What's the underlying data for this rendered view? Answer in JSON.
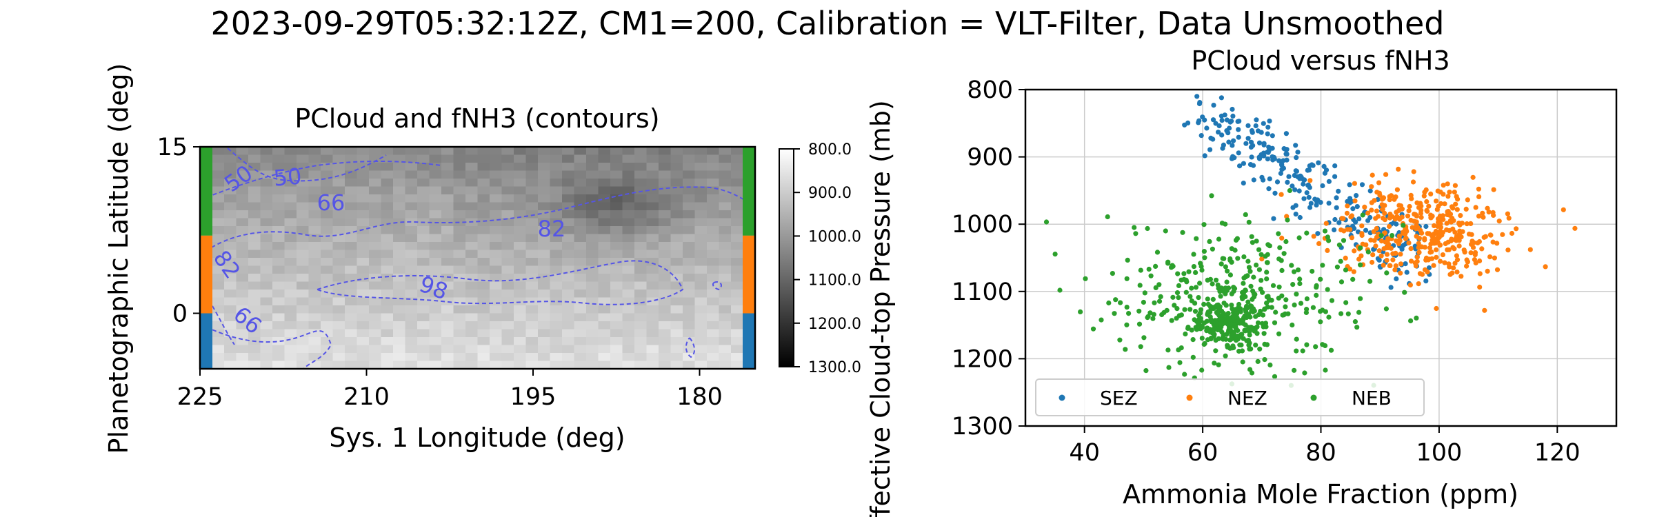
{
  "suptitle": "2023-09-29T05:32:12Z, CM1=200, Calibration = VLT-Filter, Data Unsmoothed",
  "chart_data": [
    {
      "type": "heatmap",
      "title": "PCloud and fNH3 (contours)",
      "xlabel": "Sys. 1 Longitude (deg)",
      "ylabel": "Planetographic Latitude (deg)",
      "x_range": [
        225,
        175
      ],
      "y_range": [
        -5,
        15
      ],
      "x_ticks": [
        "225",
        "210",
        "195",
        "180"
      ],
      "y_ticks": [
        "15",
        "0"
      ],
      "colormap": "gray_r",
      "colorbar": {
        "range": [
          800,
          1300
        ],
        "ticks": [
          "800.0",
          "900.0",
          "1000.0",
          "1100.0",
          "1200.0",
          "1300.0"
        ]
      },
      "contour_labels": [
        "50",
        "50",
        "66",
        "82",
        "82",
        "98",
        "66"
      ],
      "contour_color": "#5555e6",
      "latitude_bands": [
        {
          "name": "NEB",
          "color": "#2ca02c",
          "lat_range": [
            7,
            15
          ]
        },
        {
          "name": "NEZ",
          "color": "#ff7f0e",
          "lat_range": [
            0,
            7
          ]
        },
        {
          "name": "SEZ",
          "color": "#1f77b4",
          "lat_range": [
            -5,
            0
          ]
        }
      ]
    },
    {
      "type": "scatter",
      "title": "PCloud versus fNH3",
      "xlabel": "Ammonia Mole Fraction (ppm)",
      "ylabel": "Effective Cloud-top Pressure (mb)",
      "xlim": [
        30,
        130
      ],
      "ylim": [
        1300,
        800
      ],
      "x_ticks": [
        "40",
        "60",
        "80",
        "100",
        "120"
      ],
      "y_ticks": [
        "800",
        "900",
        "1000",
        "1100",
        "1200",
        "1300"
      ],
      "grid": true,
      "legend_position": "lower-left",
      "series": [
        {
          "name": "SEZ",
          "color": "#1f77b4",
          "center": [
            87,
            975
          ],
          "spread": [
            9,
            55
          ],
          "count": 260
        },
        {
          "name": "NEZ",
          "color": "#ff7f0e",
          "center": [
            97,
            1010
          ],
          "spread": [
            8,
            35
          ],
          "count": 380
        },
        {
          "name": "NEB",
          "color": "#2ca02c",
          "center": [
            66,
            1110
          ],
          "spread": [
            11,
            55
          ],
          "count": 560
        }
      ]
    }
  ]
}
